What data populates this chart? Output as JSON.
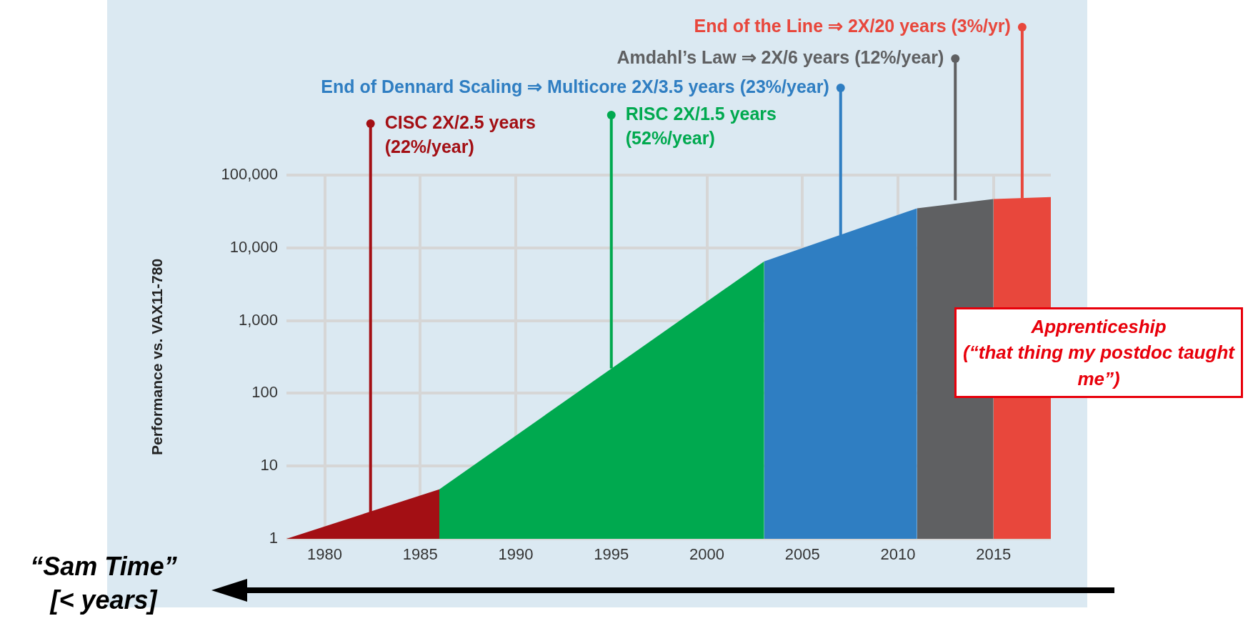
{
  "chart_data": {
    "type": "area",
    "ylabel": "Performance vs. VAX11-780",
    "log": "y",
    "xlim": [
      1978,
      2018
    ],
    "xticks": [
      1980,
      1985,
      1990,
      1995,
      2000,
      2005,
      2010,
      2015
    ],
    "ylim": [
      1,
      100000
    ],
    "yticks": [
      1,
      10,
      100,
      {
        "value": 1000,
        "label": "1,000"
      },
      {
        "value": 10000,
        "label": "10,000"
      },
      {
        "value": 100000,
        "label": "100,000"
      }
    ],
    "grid": true,
    "legend": false,
    "series": [
      {
        "color": "#a30f14",
        "x": [
          1978,
          1986
        ],
        "values": [
          1,
          4.8
        ]
      },
      {
        "color": "#00a94f",
        "x": [
          1986,
          2003
        ],
        "values": [
          4.8,
          6500
        ]
      },
      {
        "color": "#2f7ec2",
        "x": [
          2003,
          2011
        ],
        "values": [
          6500,
          35000
        ]
      },
      {
        "color": "#5f6062",
        "x": [
          2011,
          2015
        ],
        "values": [
          35000,
          47000
        ]
      },
      {
        "color": "#e8473c",
        "x": [
          2015,
          2018
        ],
        "values": [
          47000,
          50000
        ]
      }
    ],
    "annotations": [
      {
        "text": "CISC 2X/2.5 years\n(22%/year)",
        "x": 1982.4,
        "y": 2.2
      },
      {
        "text": "RISC 2X/1.5 years\n(52%/year)",
        "x": 1995,
        "y": 220
      },
      {
        "text": "End of Dennard Scaling ⇒ Multicore 2X/3.5 years (23%/year)",
        "x": 2007,
        "y": 14800
      },
      {
        "text": "Amdahl’s Law ⇒ 2X/6 years (12%/year)",
        "x": 2013,
        "y": 45000
      },
      {
        "text": "End of the Line ⇒ 2X/20 years (3%/yr)",
        "x": 2016.5,
        "y": 48000
      },
      "“Sam Time”\n[< years]",
      "Apprenticeship\n(“that thing my postdoc taught me”)"
    ]
  }
}
